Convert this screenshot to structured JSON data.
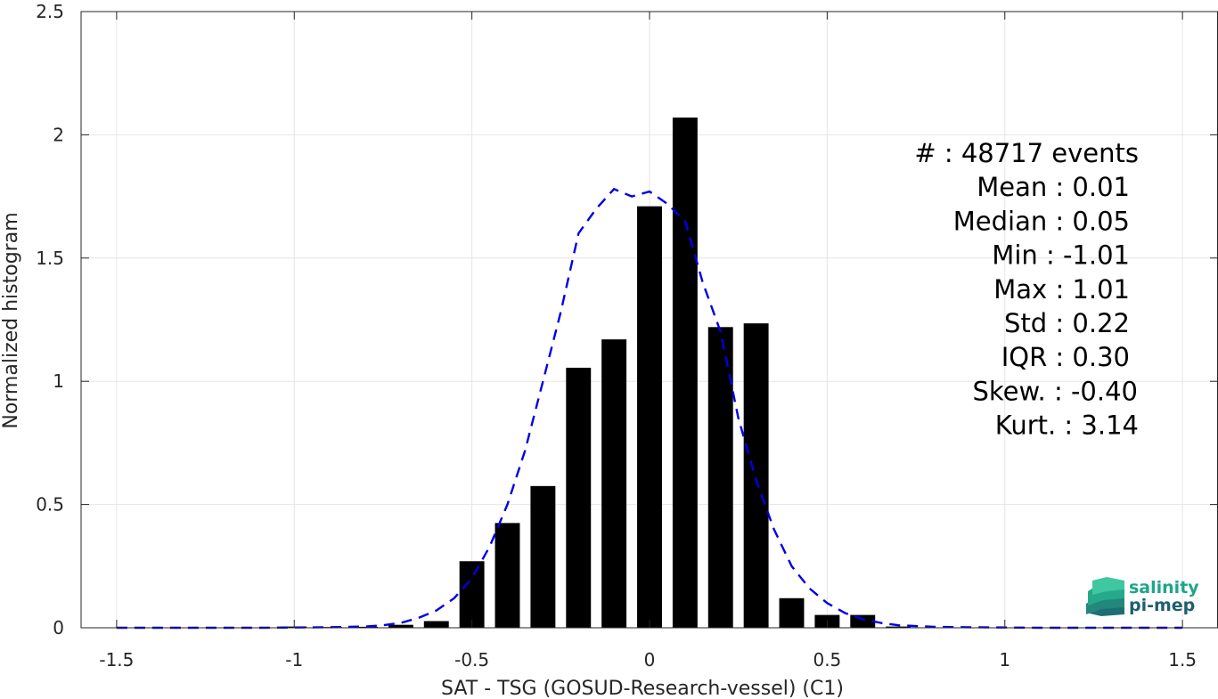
{
  "chart_data": {
    "type": "bar",
    "xlabel": "SAT - TSG (GOSUD-Research-vessel) (C1)",
    "ylabel": "Normalized histogram",
    "xlim": [
      -1.6,
      1.6
    ],
    "ylim": [
      0,
      2.5
    ],
    "x_ticks": [
      -1.5,
      -1,
      -0.5,
      0,
      0.5,
      1,
      1.5
    ],
    "x_tick_labels": [
      "-1.5",
      "-1",
      "-0.5",
      "0",
      "0.5",
      "1",
      "1.5"
    ],
    "y_ticks": [
      0,
      0.5,
      1,
      1.5,
      2,
      2.5
    ],
    "y_tick_labels": [
      "0",
      "0.5",
      "1",
      "1.5",
      "2",
      "2.5"
    ],
    "grid": true,
    "bar_width": 0.07,
    "bars": {
      "x": [
        -1.0,
        -0.9,
        -0.8,
        -0.7,
        -0.6,
        -0.5,
        -0.4,
        -0.3,
        -0.2,
        -0.1,
        0.0,
        0.1,
        0.2,
        0.3,
        0.4,
        0.5,
        0.6,
        0.7
      ],
      "values": [
        0.005,
        0.003,
        0.004,
        0.012,
        0.027,
        0.27,
        0.425,
        0.575,
        1.055,
        1.17,
        1.71,
        2.07,
        1.22,
        1.235,
        0.12,
        0.052,
        0.052,
        0.005
      ],
      "color": "#000000"
    },
    "fit": {
      "style": "dashed",
      "color": "#0000e6",
      "x": [
        -1.5,
        -1.4,
        -1.3,
        -1.2,
        -1.1,
        -1.0,
        -0.9,
        -0.8,
        -0.75,
        -0.7,
        -0.65,
        -0.6,
        -0.55,
        -0.5,
        -0.45,
        -0.4,
        -0.35,
        -0.3,
        -0.25,
        -0.2,
        -0.15,
        -0.1,
        -0.05,
        0.0,
        0.05,
        0.1,
        0.15,
        0.2,
        0.25,
        0.3,
        0.35,
        0.4,
        0.45,
        0.5,
        0.55,
        0.6,
        0.65,
        0.7,
        0.8,
        0.9,
        1.0,
        1.1,
        1.2,
        1.3,
        1.4,
        1.5
      ],
      "y": [
        0.0,
        0.0,
        0.0,
        0.0,
        0.0,
        0.001,
        0.002,
        0.005,
        0.01,
        0.02,
        0.04,
        0.07,
        0.12,
        0.2,
        0.33,
        0.5,
        0.72,
        1.0,
        1.28,
        1.6,
        1.7,
        1.78,
        1.75,
        1.77,
        1.72,
        1.65,
        1.4,
        1.2,
        0.85,
        0.6,
        0.4,
        0.25,
        0.16,
        0.1,
        0.06,
        0.035,
        0.02,
        0.01,
        0.004,
        0.002,
        0.001,
        0.0,
        0.0,
        0.0,
        0.0,
        0.0
      ]
    }
  },
  "stats": [
    {
      "label": "#  ",
      "value": "48717 events"
    },
    {
      "label": "Mean",
      "value": "0.01"
    },
    {
      "label": "Median",
      "value": "0.05"
    },
    {
      "label": "Min",
      "value": "-1.01"
    },
    {
      "label": "Max",
      "value": "1.01"
    },
    {
      "label": "Std",
      "value": "0.22"
    },
    {
      "label": "IQR",
      "value": "0.30"
    },
    {
      "label": "Skew.",
      "value": "-0.40"
    },
    {
      "label": "Kurt.",
      "value": "3.14"
    }
  ],
  "stats_text": [
    "#  : 48717 events",
    "Mean : 0.01",
    "Median : 0.05",
    "Min : -1.01",
    "Max : 1.01",
    "Std : 0.22",
    "IQR : 0.30",
    "Skew. : -0.40",
    "Kurt. : 3.14"
  ],
  "logo": {
    "line1": "salinity",
    "line2": "pi-mep",
    "icon": "salinity-layers-icon",
    "color_top": "#26a98a",
    "color_bottom": "#1e5f6e"
  }
}
